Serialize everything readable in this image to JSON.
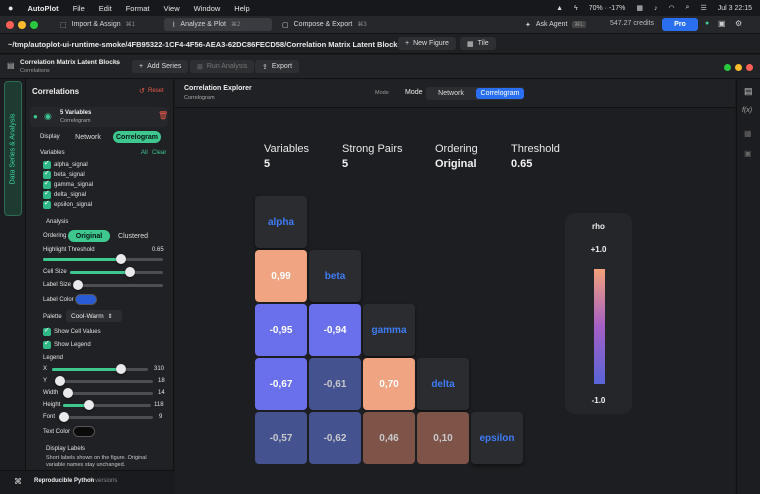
{
  "menubar": {
    "app": "AutoPlot",
    "items": [
      "File",
      "Edit",
      "Format",
      "View",
      "Window",
      "Help"
    ],
    "battery": "70% · -17%",
    "clock": "Jul 3  22:15"
  },
  "tabs": [
    {
      "label": "Import & Assign",
      "kbd": "⌘1"
    },
    {
      "label": "Analyze & Plot",
      "kbd": "⌘2"
    },
    {
      "label": "Compose & Export",
      "kbd": "⌘3"
    }
  ],
  "topright": {
    "ask_agent": "Ask Agent",
    "kbd": "⌘L",
    "credits": "547.27 credits",
    "plan": "Pro"
  },
  "pathbar": {
    "path": "~/tmp/autoplot-ui-runtime-smoke/4FB95322-1CF4-4F56-AEA3-62DC86FECD58/Correlation Matrix Latent Blocks.elab",
    "new_figure": "New Figure",
    "tile": "Tile"
  },
  "docbar": {
    "title": "Correlation Matrix Latent Blocks",
    "subtitle": "Correlations",
    "add_series": "Add Series",
    "run_analysis": "Run Analysis",
    "export": "Export"
  },
  "rail": {
    "label": "Data Series & Analysis"
  },
  "left": {
    "heading": "Correlations",
    "reset": "Reset",
    "series_name": "5 Variables",
    "series_sub": "Correlogram",
    "display_label": "Display",
    "display_options": [
      "Network",
      "Correlogram"
    ],
    "variables_label": "Variables",
    "all": "All",
    "clear": "Clear",
    "variables": [
      "alpha_signal",
      "beta_signal",
      "gamma_signal",
      "delta_signal",
      "epsilon_signal"
    ],
    "analysis_label": "Analysis",
    "ordering_label": "Ordering",
    "ordering_options": [
      "Original",
      "Clustered"
    ],
    "highlight_label": "Highlight Threshold",
    "highlight_value": "0.65",
    "highlight_fraction": 0.65,
    "cell_size_label": "Cell Size",
    "cell_size_fraction": 0.65,
    "label_size_label": "Label Size",
    "label_size_fraction": 0.05,
    "label_color_label": "Label Color",
    "label_color": "#2a5bd7",
    "palette_label": "Palette",
    "palette_value": "Cool-Warm",
    "show_values": "Show Cell Values",
    "show_legend": "Show Legend",
    "legend_label": "Legend",
    "legend_params": [
      {
        "name": "X",
        "value": "310",
        "fraction": 0.72
      },
      {
        "name": "Y",
        "value": "18",
        "fraction": 0.05
      },
      {
        "name": "Width",
        "value": "14",
        "fraction": 0.05
      },
      {
        "name": "Height",
        "value": "118",
        "fraction": 0.3
      },
      {
        "name": "Font",
        "value": "9",
        "fraction": 0.05
      }
    ],
    "text_color_label": "Text Color",
    "display_labels_label": "Display Labels",
    "display_labels_note": "Short labels shown on the figure. Original variable names stay unchanged.",
    "label_input": "alpha"
  },
  "bottom": {
    "title": "Reproducible Python",
    "versions": "0 versions"
  },
  "main": {
    "title": "Correlation Explorer",
    "subtitle": "Correlogram",
    "mode_label": "Mode",
    "mode_label2": "Mode",
    "mode_options": [
      "Network",
      "Correlogram"
    ],
    "stats": [
      {
        "label": "Variables",
        "value": "5"
      },
      {
        "label": "Strong Pairs",
        "value": "5"
      },
      {
        "label": "Ordering",
        "value": "Original"
      },
      {
        "label": "Threshold",
        "value": "0.65"
      }
    ]
  },
  "chart_data": {
    "type": "heatmap",
    "variables": [
      "alpha",
      "beta",
      "gamma",
      "delta",
      "epsilon"
    ],
    "matrix_lower": [
      [
        "alpha"
      ],
      [
        "0,99",
        "beta"
      ],
      [
        "-0,95",
        "-0,94",
        "gamma"
      ],
      [
        "-0,67",
        "-0,61",
        "0,70",
        "delta"
      ],
      [
        "-0,57",
        "-0,62",
        "0,46",
        "0,10",
        "epsilon"
      ]
    ],
    "values_numeric": [
      [
        0.99
      ],
      [
        -0.95,
        -0.94
      ],
      [
        -0.67,
        -0.61,
        0.7
      ],
      [
        -0.57,
        -0.62,
        0.46,
        0.1
      ]
    ],
    "legend_title": "rho",
    "legend_max": "+1.0",
    "legend_min": "-1.0",
    "colors": {
      "strong_pos": "#f0a482",
      "strong_neg": "#6a70ec",
      "weak_neg": "#44528f",
      "weak_pos": "#7e5448"
    }
  }
}
